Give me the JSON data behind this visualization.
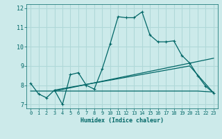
{
  "xlabel": "Humidex (Indice chaleur)",
  "bg_color": "#cceaea",
  "grid_color": "#b0d8d8",
  "line_color": "#006666",
  "xlim": [
    -0.5,
    23.5
  ],
  "ylim": [
    6.8,
    12.2
  ],
  "xticks": [
    0,
    1,
    2,
    3,
    4,
    5,
    6,
    7,
    8,
    9,
    10,
    11,
    12,
    13,
    14,
    15,
    16,
    17,
    18,
    19,
    20,
    21,
    22,
    23
  ],
  "yticks": [
    7,
    8,
    9,
    10,
    11,
    12
  ],
  "series1_x": [
    0,
    1,
    2,
    3,
    4,
    5,
    6,
    7,
    8,
    9,
    10,
    11,
    12,
    13,
    14,
    15,
    16,
    17,
    18,
    19,
    20,
    21,
    22,
    23
  ],
  "series1_y": [
    8.1,
    7.55,
    7.35,
    7.75,
    7.0,
    8.55,
    8.65,
    8.0,
    7.8,
    8.85,
    10.15,
    11.55,
    11.5,
    11.5,
    11.8,
    10.6,
    10.25,
    10.25,
    10.3,
    9.55,
    9.15,
    8.5,
    7.95,
    7.6
  ],
  "series2_x": [
    0,
    21,
    23
  ],
  "series2_y": [
    7.7,
    7.7,
    7.65
  ],
  "series3_x": [
    3,
    23
  ],
  "series3_y": [
    7.7,
    9.4
  ],
  "series4_x": [
    3,
    20,
    23
  ],
  "series4_y": [
    7.75,
    9.0,
    7.6
  ]
}
